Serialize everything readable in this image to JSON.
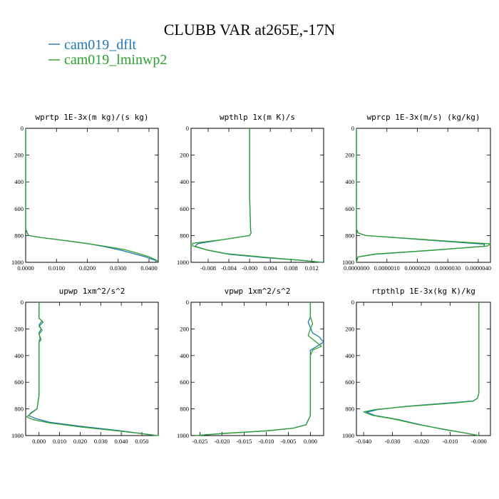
{
  "figure": {
    "title": "CLUBB VAR at265E,-17N",
    "legend": [
      {
        "label": "cam019_dflt",
        "color": "#1f77b4"
      },
      {
        "label": "cam019_lminwp2",
        "color": "#2ca02c"
      }
    ]
  },
  "chart_data": [
    {
      "type": "line",
      "title": "wprtp  1E-3x(m kg)/(s kg)",
      "xlim": [
        0,
        0.043
      ],
      "ylim": [
        1000,
        0
      ],
      "xticks": [
        0,
        0.01,
        0.02,
        0.03,
        0.04
      ],
      "xtick_labels": [
        "0.0000",
        "0.0100",
        "0.0200",
        "0.0300",
        "0.0400"
      ],
      "yticks": [
        0,
        200,
        400,
        600,
        800,
        1000
      ],
      "series": [
        {
          "color": "#1f77b4",
          "x": [
            0,
            0,
            0,
            0,
            0.0005,
            0.001,
            0.005,
            0.012,
            0.02,
            0.026,
            0.031,
            0.035,
            0.039,
            0.042,
            0.0425
          ],
          "y": [
            0,
            200,
            500,
            750,
            780,
            800,
            815,
            835,
            860,
            885,
            910,
            935,
            960,
            985,
            1000
          ]
        },
        {
          "color": "#2ca02c",
          "x": [
            0,
            0,
            0,
            0,
            0.0005,
            0.001,
            0.005,
            0.012,
            0.02,
            0.027,
            0.032,
            0.036,
            0.04,
            0.0425,
            0.043
          ],
          "y": [
            0,
            200,
            500,
            750,
            780,
            800,
            815,
            835,
            860,
            885,
            905,
            930,
            958,
            985,
            1000
          ]
        }
      ]
    },
    {
      "type": "line",
      "title": "wpthlp  1x(m K)/s",
      "xlim": [
        -0.0113,
        0.0143
      ],
      "ylim": [
        1000,
        0
      ],
      "xticks": [
        -0.008,
        -0.004,
        0,
        0.004,
        0.008,
        0.012
      ],
      "xtick_labels": [
        "-0.008",
        "-0.004",
        "-0.000",
        "0.004",
        "0.008",
        "0.012"
      ],
      "yticks": [
        0,
        200,
        400,
        600,
        800,
        1000
      ],
      "series": [
        {
          "color": "#1f77b4",
          "x": [
            0,
            0,
            0,
            0.0002,
            0.0003,
            0,
            -0.005,
            -0.01,
            -0.0105,
            -0.008,
            -0.004,
            0.003,
            0.01,
            0.014
          ],
          "y": [
            0,
            200,
            500,
            760,
            780,
            800,
            830,
            860,
            880,
            910,
            940,
            965,
            985,
            1000
          ]
        },
        {
          "color": "#2ca02c",
          "x": [
            0,
            0,
            0,
            0.0002,
            0.0003,
            0,
            -0.005,
            -0.011,
            -0.011,
            -0.0085,
            -0.0045,
            0.003,
            0.01,
            0.014
          ],
          "y": [
            0,
            200,
            500,
            760,
            780,
            800,
            830,
            858,
            878,
            905,
            935,
            962,
            985,
            1000
          ]
        }
      ]
    },
    {
      "type": "line",
      "title": "wprcp  1E-3x(m/s) (kg/kg)",
      "xlim": [
        0,
        4.4e-06
      ],
      "ylim": [
        1000,
        0
      ],
      "xticks": [
        0,
        1e-06,
        2e-06,
        3e-06,
        4e-06
      ],
      "xtick_labels": [
        "0.0000000",
        "0.0000010",
        "0.0000020",
        "0.0000030",
        "0.0000040"
      ],
      "yticks": [
        0,
        200,
        400,
        600,
        800,
        1000
      ],
      "series": [
        {
          "color": "#1f77b4",
          "x": [
            0,
            0,
            0,
            5e-08,
            3e-07,
            1.5e-06,
            3e-06,
            4.2e-06,
            4.2e-06,
            2.5e-06,
            6e-07,
            5e-08,
            0
          ],
          "y": [
            0,
            300,
            750,
            780,
            800,
            820,
            845,
            865,
            880,
            910,
            940,
            960,
            1000
          ]
        },
        {
          "color": "#2ca02c",
          "x": [
            0,
            0,
            0,
            5e-08,
            3e-07,
            1.6e-06,
            3.2e-06,
            4.4e-06,
            4.3e-06,
            2.6e-06,
            6e-07,
            5e-08,
            0
          ],
          "y": [
            0,
            300,
            750,
            780,
            800,
            820,
            845,
            862,
            878,
            908,
            938,
            960,
            1000
          ]
        }
      ]
    },
    {
      "type": "line",
      "title": "upwp  1xm^2/s^2",
      "xlim": [
        -0.0065,
        0.058
      ],
      "ylim": [
        1000,
        0
      ],
      "xticks": [
        0,
        0.01,
        0.02,
        0.03,
        0.04,
        0.05
      ],
      "xtick_labels": [
        "0.000",
        "0.010",
        "0.020",
        "0.030",
        "0.040",
        "0.050"
      ],
      "yticks": [
        0,
        200,
        400,
        600,
        800,
        1000
      ],
      "series": [
        {
          "color": "#1f77b4",
          "x": [
            0,
            0,
            0.0015,
            0,
            0.001,
            0,
            0.0005,
            0,
            0,
            -0.001,
            -0.004,
            -0.005,
            -0.002,
            0.005,
            0.02,
            0.04,
            0.057
          ],
          "y": [
            0,
            120,
            140,
            170,
            200,
            230,
            270,
            300,
            700,
            800,
            830,
            850,
            870,
            900,
            930,
            965,
            1000
          ]
        },
        {
          "color": "#2ca02c",
          "x": [
            0,
            0,
            0.002,
            0,
            0.0015,
            0,
            0.001,
            0,
            0,
            -0.001,
            -0.004,
            -0.006,
            -0.003,
            0.005,
            0.02,
            0.04,
            0.058
          ],
          "y": [
            0,
            120,
            150,
            180,
            210,
            240,
            280,
            300,
            700,
            800,
            835,
            860,
            880,
            905,
            935,
            968,
            1000
          ]
        }
      ]
    },
    {
      "type": "line",
      "title": "vpwp  1xm^2/s^2",
      "xlim": [
        -0.027,
        0.003
      ],
      "ylim": [
        1000,
        0
      ],
      "xticks": [
        -0.025,
        -0.02,
        -0.015,
        -0.01,
        -0.005,
        0
      ],
      "xtick_labels": [
        "-0.025",
        "-0.020",
        "-0.015",
        "-0.010",
        "-0.005",
        "0.000"
      ],
      "yticks": [
        0,
        200,
        400,
        600,
        800,
        1000
      ],
      "series": [
        {
          "color": "#1f77b4",
          "x": [
            0,
            0,
            -0.0005,
            0,
            0.0005,
            0.002,
            0.003,
            0.0015,
            0,
            0,
            0,
            -0.001,
            -0.004,
            -0.01,
            -0.02,
            -0.026
          ],
          "y": [
            0,
            110,
            150,
            190,
            230,
            260,
            300,
            330,
            360,
            700,
            850,
            920,
            945,
            965,
            985,
            1000
          ]
        },
        {
          "color": "#2ca02c",
          "x": [
            0,
            0,
            0.0005,
            0,
            -0.0005,
            0.001,
            0.0025,
            0.0005,
            0,
            0,
            0,
            -0.001,
            -0.004,
            -0.01,
            -0.02,
            -0.026
          ],
          "y": [
            0,
            110,
            160,
            200,
            250,
            290,
            330,
            360,
            400,
            700,
            850,
            920,
            945,
            965,
            985,
            1000
          ]
        }
      ]
    },
    {
      "type": "line",
      "title": "rtpthlp  1E-3x(kg K)/kg",
      "xlim": [
        -0.0425,
        0.004
      ],
      "ylim": [
        1000,
        0
      ],
      "xticks": [
        -0.04,
        -0.03,
        -0.02,
        -0.01,
        0
      ],
      "xtick_labels": [
        "-0.040",
        "-0.030",
        "-0.020",
        "-0.010",
        "-0.000"
      ],
      "yticks": [
        0,
        200,
        400,
        600,
        800,
        1000
      ],
      "series": [
        {
          "color": "#1f77b4",
          "x": [
            0,
            0,
            0,
            -0.0005,
            -0.002,
            -0.01,
            -0.025,
            -0.035,
            -0.039,
            -0.036,
            -0.028,
            -0.02,
            -0.012,
            -0.005,
            0
          ],
          "y": [
            0,
            300,
            680,
            720,
            740,
            755,
            780,
            805,
            825,
            850,
            880,
            920,
            955,
            980,
            1000
          ]
        },
        {
          "color": "#2ca02c",
          "x": [
            0,
            0,
            0,
            -0.0005,
            -0.002,
            -0.01,
            -0.025,
            -0.036,
            -0.04,
            -0.037,
            -0.029,
            -0.021,
            -0.012,
            -0.005,
            0
          ],
          "y": [
            0,
            300,
            680,
            720,
            742,
            758,
            782,
            805,
            822,
            848,
            878,
            918,
            953,
            980,
            1000
          ]
        }
      ]
    }
  ]
}
